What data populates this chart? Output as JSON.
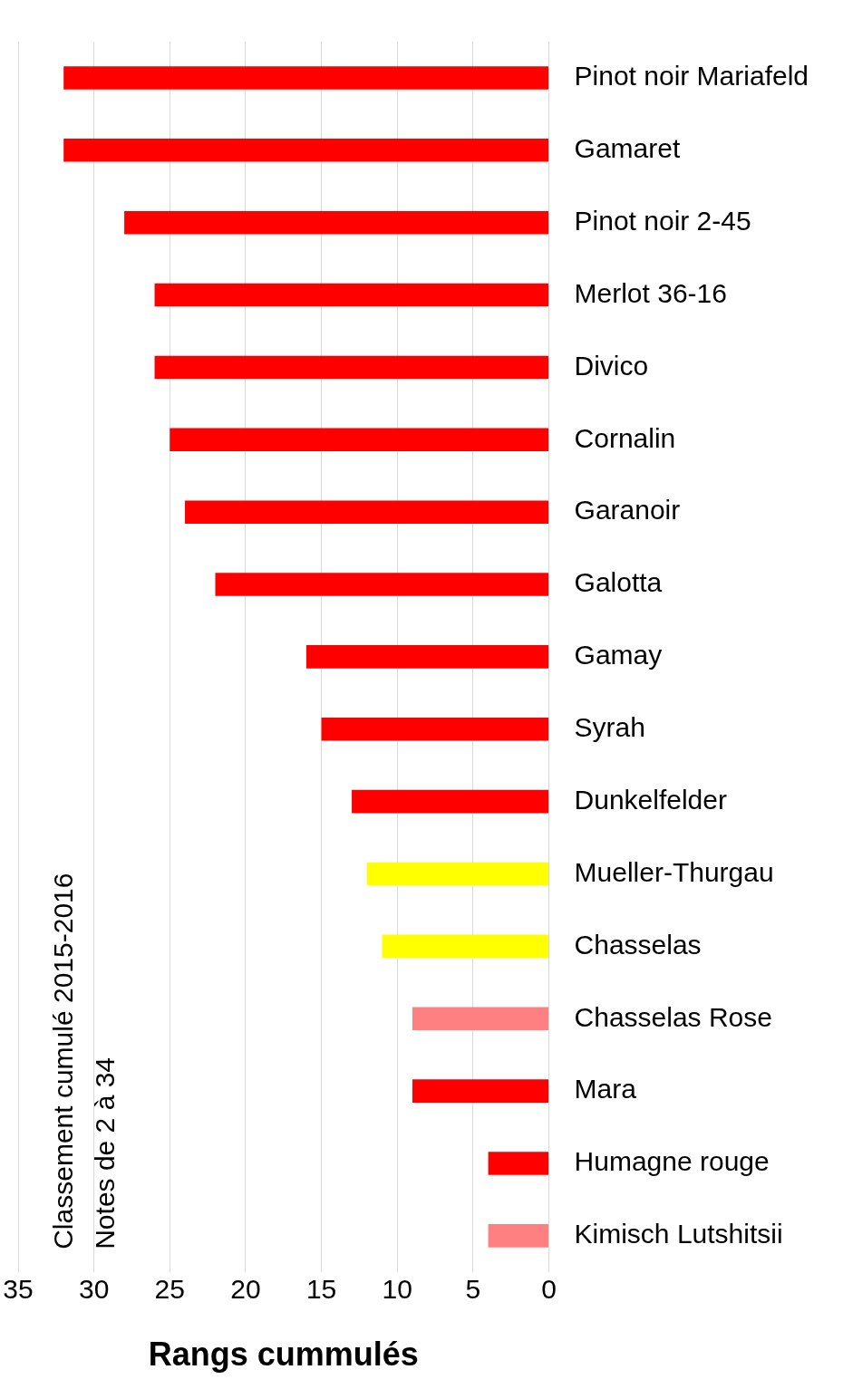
{
  "chart_data": {
    "type": "bar",
    "orientation": "horizontal",
    "title": "Classement cumulé 2015-2016",
    "subtitle": "Notes de 2 à 34",
    "xlabel": "Rangs cummulés",
    "categories": [
      "Pinot noir Mariafeld",
      "Gamaret",
      "Pinot noir 2-45",
      "Merlot 36-16",
      "Divico",
      "Cornalin",
      "Garanoir",
      "Galotta",
      "Gamay",
      "Syrah",
      "Dunkelfelder",
      "Mueller-Thurgau",
      "Chasselas",
      "Chasselas Rose",
      "Mara",
      "Humagne rouge",
      "Kimisch Lutshitsii"
    ],
    "values": [
      32,
      32,
      28,
      26,
      26,
      25,
      24,
      22,
      16,
      15,
      13,
      12,
      11,
      9,
      9,
      4,
      4
    ],
    "colors": [
      "#ff0000",
      "#ff0000",
      "#ff0000",
      "#ff0000",
      "#ff0000",
      "#ff0000",
      "#ff0000",
      "#ff0000",
      "#ff0000",
      "#ff0000",
      "#ff0000",
      "#ffff00",
      "#ffff00",
      "#ff8080",
      "#ff0000",
      "#ff0000",
      "#ff8080"
    ],
    "xlim": [
      35,
      0
    ],
    "xticks": [
      35,
      30,
      25,
      20,
      15,
      10,
      5,
      0
    ],
    "grid": "x"
  }
}
